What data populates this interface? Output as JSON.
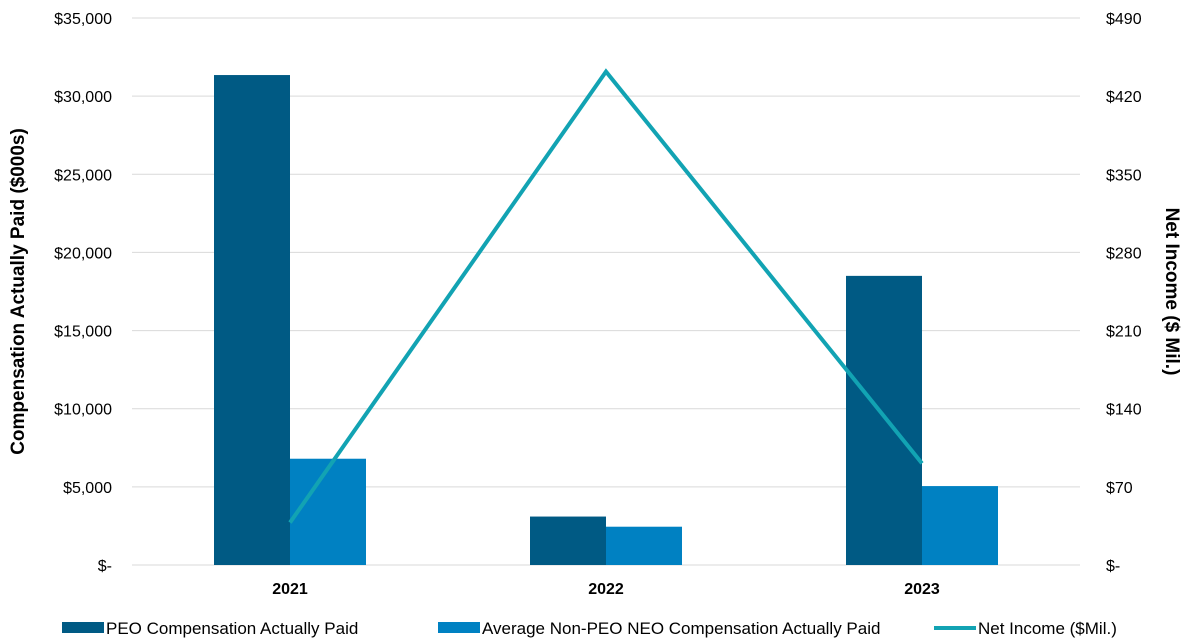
{
  "chart_data": {
    "type": "bar",
    "categories": [
      "2021",
      "2022",
      "2023"
    ],
    "series": [
      {
        "name": "PEO Compensation Actually Paid",
        "type": "bar",
        "axis": "left",
        "color": "#005a84",
        "values": [
          31350,
          3100,
          18500
        ]
      },
      {
        "name": "Average Non-PEO NEO Compensation Actually Paid",
        "type": "bar",
        "axis": "left",
        "color": "#0081c2",
        "values": [
          6800,
          2450,
          5050
        ]
      },
      {
        "name": "Net Income ($Mil.)",
        "type": "line",
        "axis": "right",
        "color": "#12a3b3",
        "values": [
          38,
          442,
          91
        ]
      }
    ],
    "ylabel": "Compensation Actually Paid ($000s)",
    "y2label": "Net Income ($ Mil.)",
    "ylim": [
      0,
      35000
    ],
    "y2lim": [
      0,
      490
    ],
    "yticks": [
      "$-",
      "$5,000",
      "$10,000",
      "$15,000",
      "$20,000",
      "$25,000",
      "$30,000",
      "$35,000"
    ],
    "y2ticks": [
      "$-",
      "$70",
      "$140",
      "$210",
      "$280",
      "$350",
      "$420",
      "$490"
    ],
    "grid": true,
    "legend_position": "bottom"
  }
}
